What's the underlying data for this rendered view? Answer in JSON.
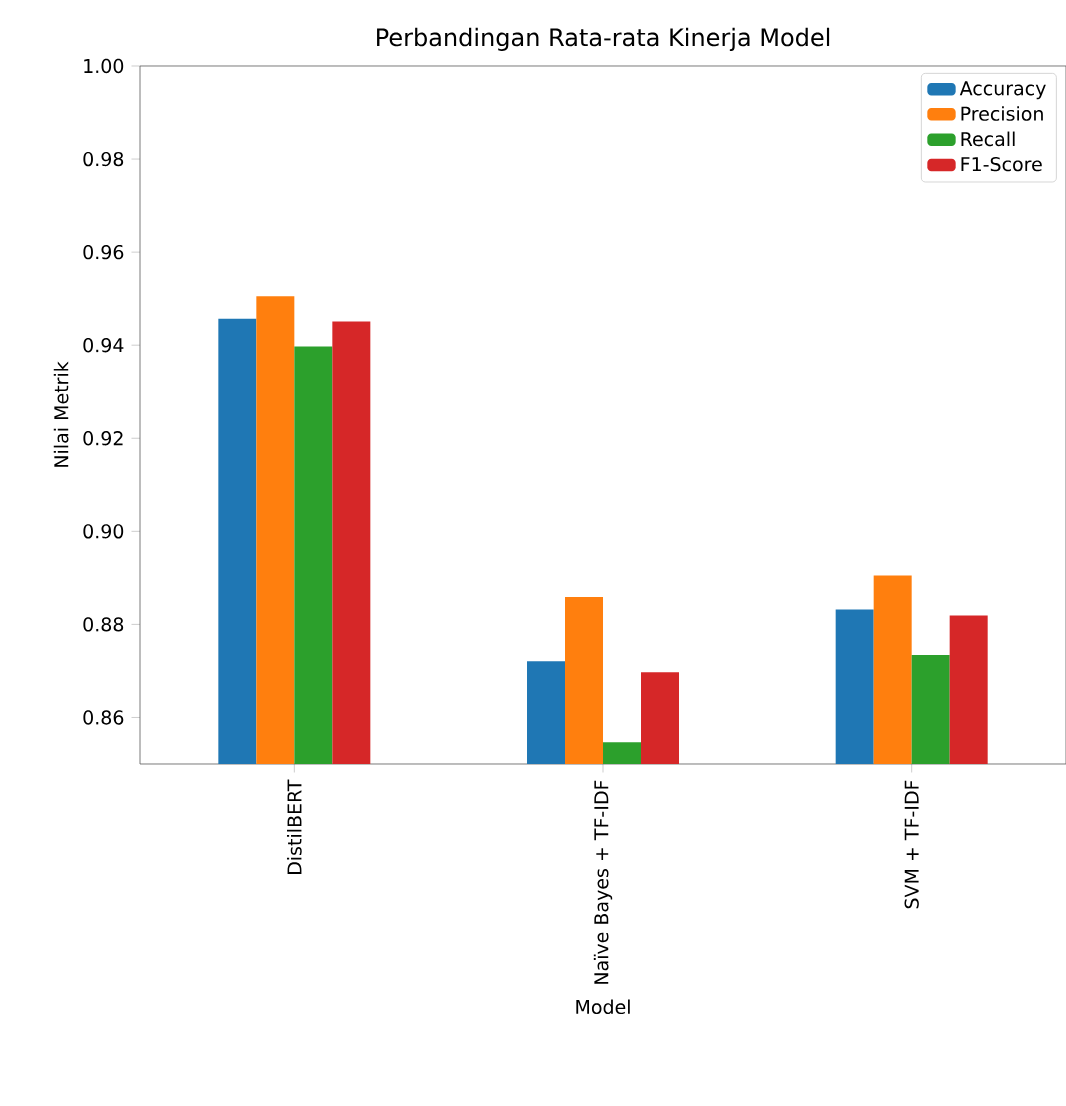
{
  "chart_data": {
    "type": "bar",
    "title": "Perbandingan Rata-rata Kinerja Model",
    "xlabel": "Model",
    "ylabel": "Nilai Metrik",
    "categories": [
      "DistilBERT",
      "Naïve Bayes + TF-IDF",
      "SVM + TF-IDF"
    ],
    "series": [
      {
        "name": "Accuracy",
        "color": "#1f77b4",
        "values": [
          0.9457,
          0.8721,
          0.8832
        ]
      },
      {
        "name": "Precision",
        "color": "#ff7f0e",
        "values": [
          0.9505,
          0.8859,
          0.8905
        ]
      },
      {
        "name": "Recall",
        "color": "#2ca02c",
        "values": [
          0.9397,
          0.8547,
          0.8734
        ]
      },
      {
        "name": "F1-Score",
        "color": "#d62728",
        "values": [
          0.9451,
          0.8697,
          0.8819
        ]
      }
    ],
    "ylim": [
      0.85,
      1.0
    ],
    "yticks": [
      0.86,
      0.88,
      {
        "value": 0.9,
        "label": "0.90"
      },
      0.92,
      0.94,
      0.96,
      0.98,
      {
        "value": 1.0,
        "label": "1.00"
      }
    ],
    "legend": "top right",
    "grid": false
  }
}
